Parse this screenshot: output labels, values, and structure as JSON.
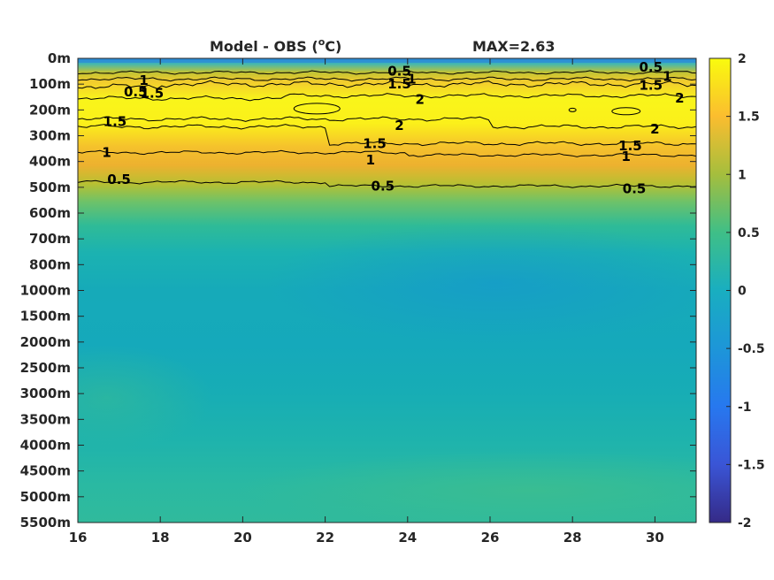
{
  "chart_data": {
    "type": "heatmap",
    "title_left": "Model - OBS (",
    "title_sup": "o",
    "title_right": "C)",
    "title_max": "MAX=2.63",
    "x_ticks": [
      "16",
      "18",
      "20",
      "22",
      "24",
      "26",
      "28",
      "30"
    ],
    "x_values": [
      16,
      18,
      20,
      22,
      24,
      26,
      28,
      30
    ],
    "xlim": [
      16,
      31
    ],
    "y_ticks": [
      "0m",
      "100m",
      "200m",
      "300m",
      "400m",
      "500m",
      "600m",
      "700m",
      "800m",
      "1000m",
      "1500m",
      "2000m",
      "2500m",
      "3000m",
      "3500m",
      "4000m",
      "4500m",
      "5000m",
      "5500m"
    ],
    "colorbar": {
      "ticks": [
        "2",
        "1.5",
        "1",
        "0.5",
        "0",
        "-0.5",
        "-1",
        "-1.5",
        "-2"
      ],
      "range": [
        -2,
        2
      ]
    },
    "contour_labels": [
      {
        "text": "0.5",
        "x": 17.4,
        "level": 1.3
      },
      {
        "text": "1",
        "x": 17.6,
        "level": 0.85
      },
      {
        "text": "1.5",
        "x": 17.8,
        "level": 1.35
      },
      {
        "text": "1.5",
        "x": 16.9,
        "level": 2.45
      },
      {
        "text": "1",
        "x": 16.7,
        "level": 3.65
      },
      {
        "text": "0.5",
        "x": 17.0,
        "level": 4.7
      },
      {
        "text": "0.5",
        "x": 23.8,
        "level": 0.5
      },
      {
        "text": "1",
        "x": 24.1,
        "level": 0.8
      },
      {
        "text": "1.5",
        "x": 23.8,
        "level": 1.0
      },
      {
        "text": "2",
        "x": 24.3,
        "level": 1.6
      },
      {
        "text": "2",
        "x": 23.8,
        "level": 2.6
      },
      {
        "text": "1.5",
        "x": 23.2,
        "level": 3.3
      },
      {
        "text": "1",
        "x": 23.1,
        "level": 3.95
      },
      {
        "text": "0.5",
        "x": 23.4,
        "level": 4.95
      },
      {
        "text": "0.5",
        "x": 29.9,
        "level": 0.35
      },
      {
        "text": "1",
        "x": 30.3,
        "level": 0.7
      },
      {
        "text": "1.5",
        "x": 29.9,
        "level": 1.05
      },
      {
        "text": "2",
        "x": 30.6,
        "level": 1.55
      },
      {
        "text": "2",
        "x": 30.0,
        "level": 2.75
      },
      {
        "text": "1.5",
        "x": 29.4,
        "level": 3.4
      },
      {
        "text": "1",
        "x": 29.3,
        "level": 3.8
      },
      {
        "text": "0.5",
        "x": 29.5,
        "level": 5.05
      }
    ],
    "contour_levels": [
      0.5,
      1,
      1.5,
      2
    ],
    "colors": {
      "neg2": "#352a87",
      "neg1": "#2b6ff0",
      "zero": "#1ab0bf",
      "pos05": "#3fbf87",
      "pos1": "#a5be3d",
      "pos15": "#fbb334",
      "pos2": "#f9fb0e"
    }
  }
}
